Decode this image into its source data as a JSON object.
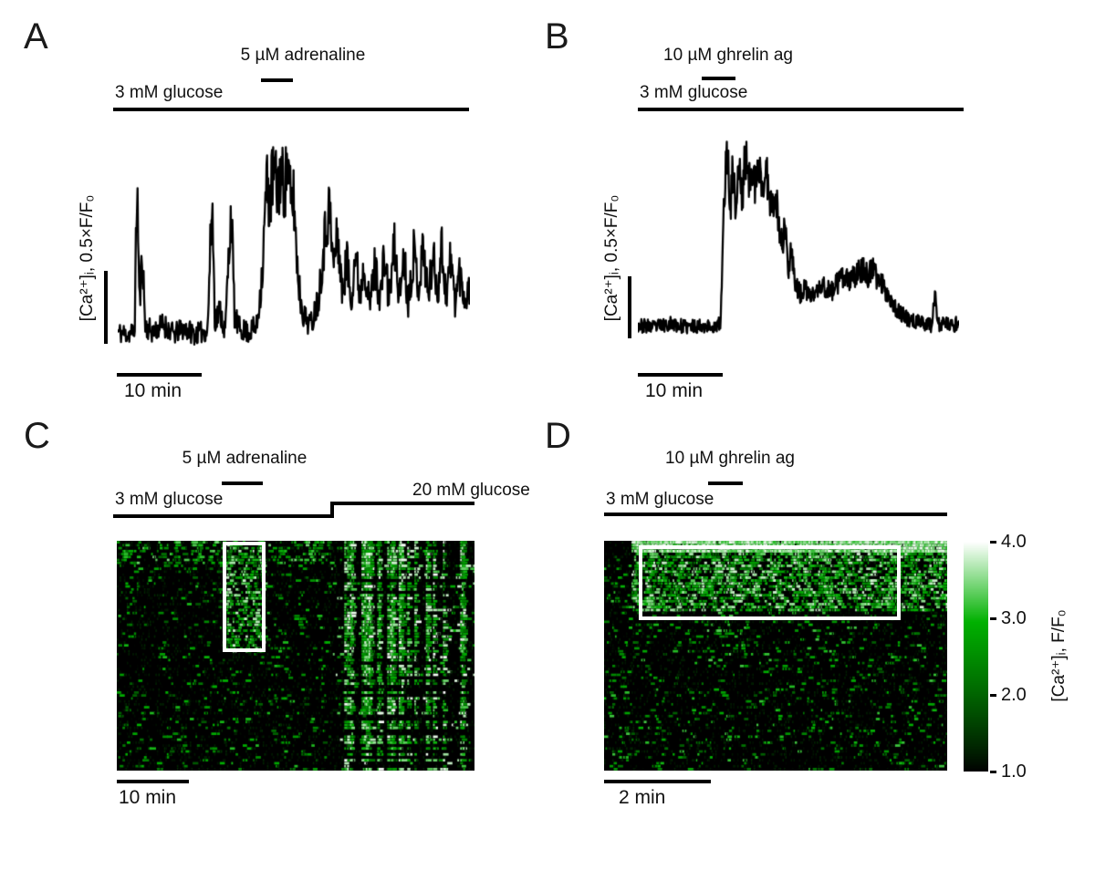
{
  "figure": {
    "background": "#ffffff",
    "trace_color": "#000000",
    "highlight_color": "#ffffff",
    "colorbar": {
      "ticks": [
        "4.0",
        "3.0",
        "2.0",
        "1.0"
      ],
      "label": "[Ca²⁺]ᵢ, F/F₀",
      "min_value": 1.0,
      "max_value": 4.0,
      "colormap": "black-green-white"
    }
  },
  "chart_data": [
    {
      "panel": "A",
      "type": "line",
      "ylabel": "[Ca²⁺]ᵢ, 0.5×F/F₀",
      "condition_label": "3 mM glucose",
      "treatment_label": "5 µM adrenaline",
      "time_scalebar": "10 min",
      "points": 640,
      "seed": 11,
      "noise_base": 0.03,
      "noise_scale": 0.18,
      "keypoints": [
        [
          0.0,
          0.13
        ],
        [
          0.03,
          0.12
        ],
        [
          0.048,
          0.14
        ],
        [
          0.055,
          0.86
        ],
        [
          0.062,
          0.25
        ],
        [
          0.07,
          0.52
        ],
        [
          0.078,
          0.16
        ],
        [
          0.1,
          0.13
        ],
        [
          0.13,
          0.17
        ],
        [
          0.16,
          0.12
        ],
        [
          0.19,
          0.15
        ],
        [
          0.22,
          0.12
        ],
        [
          0.255,
          0.14
        ],
        [
          0.268,
          0.78
        ],
        [
          0.276,
          0.18
        ],
        [
          0.29,
          0.24
        ],
        [
          0.305,
          0.13
        ],
        [
          0.322,
          0.74
        ],
        [
          0.332,
          0.2
        ],
        [
          0.345,
          0.15
        ],
        [
          0.37,
          0.13
        ],
        [
          0.395,
          0.16
        ],
        [
          0.412,
          0.45
        ],
        [
          0.422,
          0.85
        ],
        [
          0.432,
          0.75
        ],
        [
          0.442,
          0.92
        ],
        [
          0.452,
          0.8
        ],
        [
          0.462,
          0.9
        ],
        [
          0.472,
          0.82
        ],
        [
          0.482,
          0.95
        ],
        [
          0.492,
          0.72
        ],
        [
          0.5,
          0.78
        ],
        [
          0.508,
          0.5
        ],
        [
          0.518,
          0.3
        ],
        [
          0.53,
          0.2
        ],
        [
          0.55,
          0.17
        ],
        [
          0.57,
          0.3
        ],
        [
          0.585,
          0.55
        ],
        [
          0.6,
          0.75
        ],
        [
          0.612,
          0.45
        ],
        [
          0.625,
          0.6
        ],
        [
          0.638,
          0.3
        ],
        [
          0.65,
          0.5
        ],
        [
          0.662,
          0.28
        ],
        [
          0.675,
          0.52
        ],
        [
          0.688,
          0.3
        ],
        [
          0.7,
          0.48
        ],
        [
          0.715,
          0.25
        ],
        [
          0.73,
          0.45
        ],
        [
          0.745,
          0.3
        ],
        [
          0.758,
          0.5
        ],
        [
          0.77,
          0.28
        ],
        [
          0.785,
          0.55
        ],
        [
          0.8,
          0.3
        ],
        [
          0.812,
          0.5
        ],
        [
          0.825,
          0.28
        ],
        [
          0.84,
          0.52
        ],
        [
          0.855,
          0.35
        ],
        [
          0.868,
          0.55
        ],
        [
          0.882,
          0.3
        ],
        [
          0.895,
          0.5
        ],
        [
          0.908,
          0.32
        ],
        [
          0.92,
          0.55
        ],
        [
          0.932,
          0.3
        ],
        [
          0.945,
          0.48
        ],
        [
          0.958,
          0.28
        ],
        [
          0.97,
          0.42
        ],
        [
          0.985,
          0.3
        ],
        [
          1.0,
          0.34
        ]
      ]
    },
    {
      "panel": "B",
      "type": "line",
      "ylabel": "[Ca²⁺]ᵢ, 0.5×F/F₀",
      "condition_label": "3 mM glucose",
      "treatment_label": "10 µM ghrelin ag",
      "time_scalebar": "10 min",
      "points": 640,
      "seed": 23,
      "noise_base": 0.022,
      "noise_scale": 0.1,
      "keypoints": [
        [
          0.0,
          0.13
        ],
        [
          0.05,
          0.12
        ],
        [
          0.1,
          0.14
        ],
        [
          0.15,
          0.12
        ],
        [
          0.2,
          0.13
        ],
        [
          0.24,
          0.12
        ],
        [
          0.258,
          0.14
        ],
        [
          0.265,
          0.55
        ],
        [
          0.272,
          0.88
        ],
        [
          0.28,
          0.95
        ],
        [
          0.288,
          0.7
        ],
        [
          0.296,
          0.9
        ],
        [
          0.305,
          0.68
        ],
        [
          0.315,
          0.92
        ],
        [
          0.325,
          0.72
        ],
        [
          0.335,
          0.98
        ],
        [
          0.345,
          0.8
        ],
        [
          0.355,
          0.95
        ],
        [
          0.365,
          0.78
        ],
        [
          0.378,
          0.9
        ],
        [
          0.39,
          0.8
        ],
        [
          0.402,
          0.86
        ],
        [
          0.415,
          0.72
        ],
        [
          0.428,
          0.78
        ],
        [
          0.44,
          0.6
        ],
        [
          0.45,
          0.52
        ],
        [
          0.458,
          0.62
        ],
        [
          0.468,
          0.4
        ],
        [
          0.478,
          0.52
        ],
        [
          0.49,
          0.33
        ],
        [
          0.505,
          0.28
        ],
        [
          0.52,
          0.3
        ],
        [
          0.54,
          0.27
        ],
        [
          0.56,
          0.3
        ],
        [
          0.58,
          0.32
        ],
        [
          0.6,
          0.29
        ],
        [
          0.62,
          0.33
        ],
        [
          0.64,
          0.36
        ],
        [
          0.66,
          0.34
        ],
        [
          0.68,
          0.38
        ],
        [
          0.7,
          0.4
        ],
        [
          0.715,
          0.37
        ],
        [
          0.73,
          0.4
        ],
        [
          0.745,
          0.36
        ],
        [
          0.76,
          0.33
        ],
        [
          0.78,
          0.28
        ],
        [
          0.8,
          0.22
        ],
        [
          0.83,
          0.17
        ],
        [
          0.86,
          0.15
        ],
        [
          0.89,
          0.14
        ],
        [
          0.915,
          0.13
        ],
        [
          0.925,
          0.3
        ],
        [
          0.935,
          0.13
        ],
        [
          0.96,
          0.14
        ],
        [
          0.98,
          0.12
        ],
        [
          1.0,
          0.15
        ]
      ]
    },
    {
      "panel": "C",
      "type": "heatmap",
      "condition_label": "3 mM glucose",
      "condition2_label": "20 mM glucose",
      "treatment_label": "5 µM adrenaline",
      "time_scalebar": "10 min",
      "value_label": "[Ca²⁺]ᵢ, F/F₀",
      "value_range": [
        1.0,
        4.0
      ],
      "rows": 78,
      "cols": 250,
      "seed": 5,
      "regions": [
        {
          "x0": 0,
          "x1": 0.6,
          "y0": 0,
          "y1": 1,
          "p": 0.045,
          "vmin": 0.25,
          "vmax": 0.7
        },
        {
          "x0": 0,
          "x1": 0.6,
          "y0": 0,
          "y1": 0.1,
          "p": 0.18,
          "vmin": 0.3,
          "vmax": 0.85
        },
        {
          "x0": 0.295,
          "x1": 0.41,
          "y0": 0,
          "y1": 0.48,
          "p": 0.3,
          "vmin": 0.3,
          "vmax": 0.95
        },
        {
          "x0": 0.6,
          "x1": 1,
          "y0": 0,
          "y1": 1,
          "p": 0.55,
          "vmin": 0.35,
          "vmax": 1.0,
          "sync": true,
          "syncp": 0.4,
          "rowfrac": 0.85
        }
      ],
      "highlight_box": {
        "x0": 0.295,
        "x1": 0.415,
        "y0": 0.004,
        "y1": 0.485
      }
    },
    {
      "panel": "D",
      "type": "heatmap",
      "condition_label": "3 mM glucose",
      "treatment_label": "10 µM ghrelin ag",
      "time_scalebar": "2 min",
      "value_label": "[Ca²⁺]ᵢ, F/F₀",
      "value_range": [
        1.0,
        4.0
      ],
      "rows": 78,
      "cols": 250,
      "seed": 9,
      "regions": [
        {
          "x0": 0,
          "x1": 1,
          "y0": 0,
          "y1": 1,
          "p": 0.05,
          "vmin": 0.25,
          "vmax": 0.75
        },
        {
          "x0": 0.08,
          "x1": 1,
          "y0": 0,
          "y1": 0.05,
          "p": 0.92,
          "vmin": 0.7,
          "vmax": 1.0
        },
        {
          "x0": 0.08,
          "x1": 1,
          "y0": 0.05,
          "y1": 0.3,
          "p": 0.4,
          "vmin": 0.35,
          "vmax": 0.95
        },
        {
          "x0": 0.3,
          "x1": 0.42,
          "y0": 0.3,
          "y1": 0.55,
          "p": 0.12,
          "vmin": 0.3,
          "vmax": 0.8
        }
      ],
      "highlight_box": {
        "x0": 0.1,
        "x1": 0.865,
        "y0": 0.02,
        "y1": 0.345
      }
    }
  ]
}
